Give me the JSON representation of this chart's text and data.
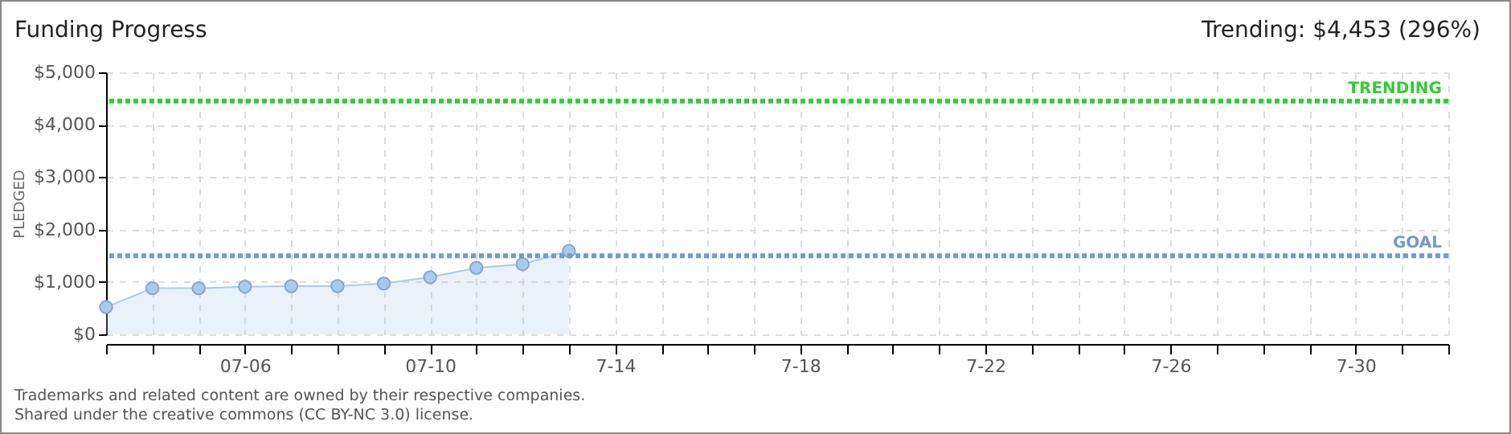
{
  "chart_data": {
    "type": "area",
    "title": "Funding Progress",
    "ylabel": "PLEDGED",
    "annotations": [
      "Trending: $4,453 (296%)",
      "Trademarks and related content are owned by their respective companies.",
      "Shared under the creative commons (CC BY-NC 3.0) license."
    ],
    "x": [
      "--07-03",
      "--07-04",
      "--07-05",
      "--07-06",
      "--07-07",
      "--07-08",
      "--07-09",
      "--07-10",
      "--07-11",
      "--07-12",
      "--07-13"
    ],
    "series": [
      {
        "color": "#a9c9ee",
        "values": [
          520,
          880,
          880,
          910,
          920,
          920,
          970,
          1090,
          1270,
          1340,
          1590
        ]
      }
    ],
    "xlim": [
      "--07-03",
      "--08-01"
    ],
    "xticks": [
      {
        "value": "--07-03",
        "label": null
      },
      {
        "value": "--07-04",
        "label": null
      },
      {
        "value": "--07-05",
        "label": null
      },
      {
        "value": "--07-06",
        "label": "07-06"
      },
      {
        "value": "--07-07",
        "label": null
      },
      {
        "value": "--07-08",
        "label": null
      },
      {
        "value": "--07-09",
        "label": null
      },
      {
        "value": "--07-10",
        "label": "07-10"
      },
      {
        "value": "--07-11",
        "label": null
      },
      {
        "value": "--07-12",
        "label": null
      },
      {
        "value": "--07-13",
        "label": null
      },
      {
        "value": "--07-14",
        "label": "7-14"
      },
      {
        "value": "--07-15",
        "label": null
      },
      {
        "value": "--07-16",
        "label": null
      },
      {
        "value": "--07-17",
        "label": null
      },
      {
        "value": "--07-18",
        "label": "7-18"
      },
      {
        "value": "--07-19",
        "label": null
      },
      {
        "value": "--07-20",
        "label": null
      },
      {
        "value": "--07-21",
        "label": null
      },
      {
        "value": "--07-22",
        "label": "7-22"
      },
      {
        "value": "--07-23",
        "label": null
      },
      {
        "value": "--07-24",
        "label": null
      },
      {
        "value": "--07-25",
        "label": null
      },
      {
        "value": "--07-26",
        "label": "7-26"
      },
      {
        "value": "--07-27",
        "label": null
      },
      {
        "value": "--07-28",
        "label": null
      },
      {
        "value": "--07-29",
        "label": null
      },
      {
        "value": "--07-30",
        "label": "7-30"
      },
      {
        "value": "--07-31",
        "label": null
      },
      {
        "value": "--08-01",
        "label": null
      }
    ],
    "ylim": [
      0,
      5000
    ],
    "yticks": [
      {
        "value": 0,
        "label": "$0"
      },
      {
        "value": 1000,
        "label": "$1,000"
      },
      {
        "value": 2000,
        "label": "$2,000"
      },
      {
        "value": 3000,
        "label": "$3,000"
      },
      {
        "value": 4000,
        "label": "$4,000"
      },
      {
        "value": 5000,
        "label": "$5,000"
      }
    ],
    "ref_lines": [
      {
        "axis": "y",
        "value": 4453,
        "label": "TRENDING",
        "color": "#33cc33",
        "line_style": "dotted"
      },
      {
        "axis": "y",
        "value": 1500,
        "label": "GOAL",
        "color": "#7799cc",
        "line_style": "dotted"
      }
    ],
    "grid": true,
    "marker": "circle",
    "line_style": "solid"
  }
}
